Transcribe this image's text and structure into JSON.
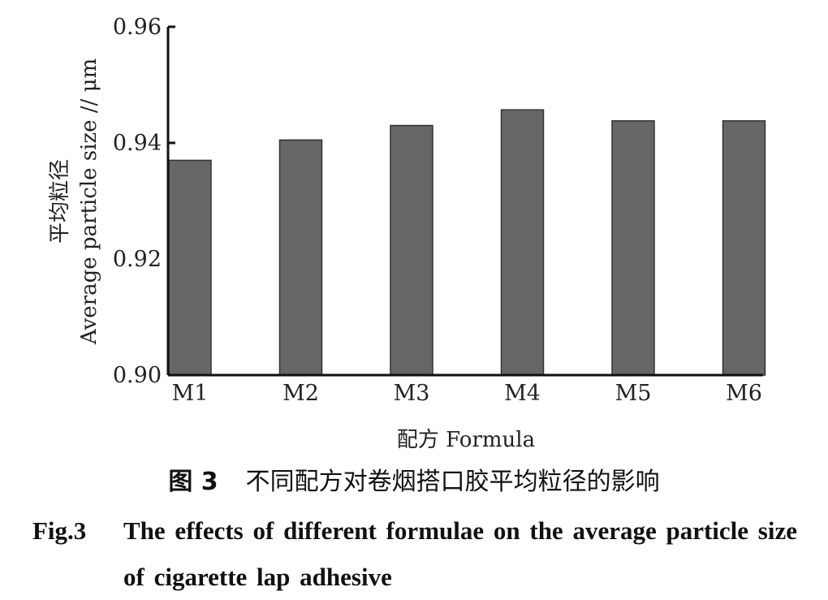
{
  "chart_data": {
    "type": "bar",
    "categories": [
      "M1",
      "M2",
      "M3",
      "M4",
      "M5",
      "M6"
    ],
    "values": [
      0.937,
      0.9405,
      0.943,
      0.9457,
      0.9438,
      0.9438
    ],
    "ylim": [
      0.9,
      0.96
    ],
    "yticks": [
      "0.90",
      "0.92",
      "0.94",
      "0.96"
    ],
    "ylabel_cn": "平均粒径",
    "ylabel_en": "Average particle size // μm",
    "xlabel": "配方 Formula",
    "bar_color": "#666666",
    "grid": false
  },
  "caption": {
    "cn_number": "图 3",
    "cn_text": "不同配方对卷烟搭口胶平均粒径的影响",
    "en_number": "Fig.3",
    "en_text": "The effects of different formulae on the average particle size of cigarette lap adhesive"
  }
}
